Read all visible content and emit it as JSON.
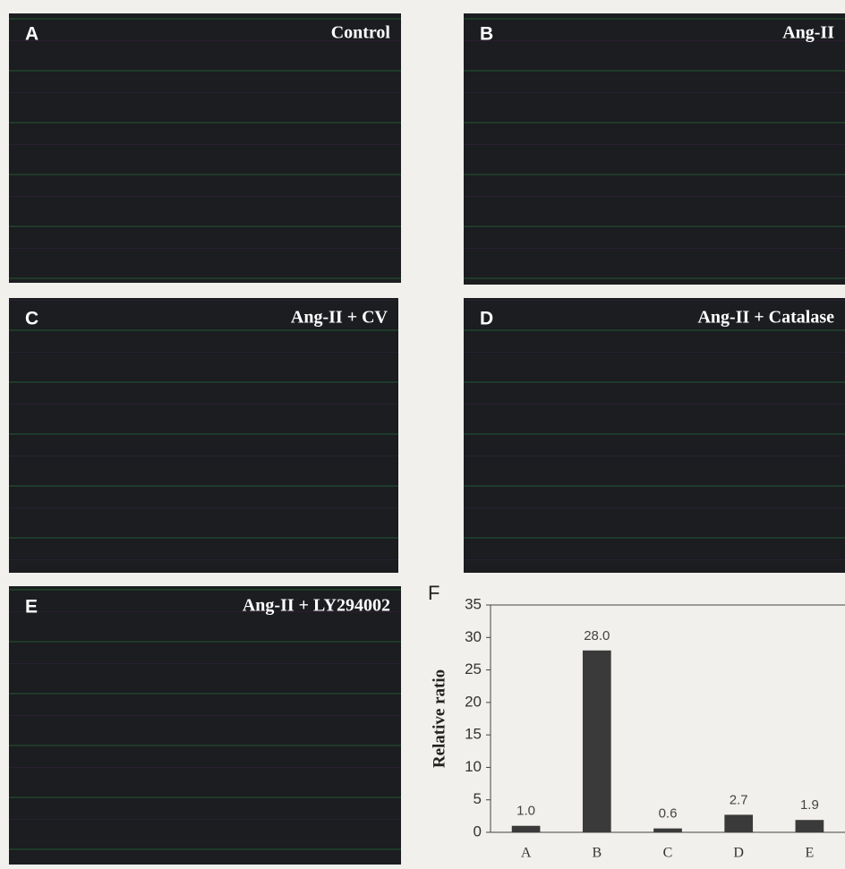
{
  "panels": [
    {
      "letter": "A",
      "label": "Control"
    },
    {
      "letter": "B",
      "label": "Ang-II"
    },
    {
      "letter": "C",
      "label": "Ang-II + CV"
    },
    {
      "letter": "D",
      "label": "Ang-II + Catalase"
    },
    {
      "letter": "E",
      "label": "Ang-II + LY294002"
    }
  ],
  "chart_data": {
    "type": "bar",
    "panel": "F",
    "ylabel": "Relative ratio",
    "categories": [
      "A",
      "B",
      "C",
      "D",
      "E"
    ],
    "values": [
      1.0,
      28.0,
      0.6,
      2.7,
      1.9
    ],
    "value_labels": [
      "1.0",
      "28.0",
      "0.6",
      "2.7",
      "1.9"
    ],
    "color": "#3a3a3a",
    "ylim": [
      0,
      35
    ],
    "yticks": [
      0,
      5,
      10,
      15,
      20,
      25,
      30,
      35
    ]
  }
}
